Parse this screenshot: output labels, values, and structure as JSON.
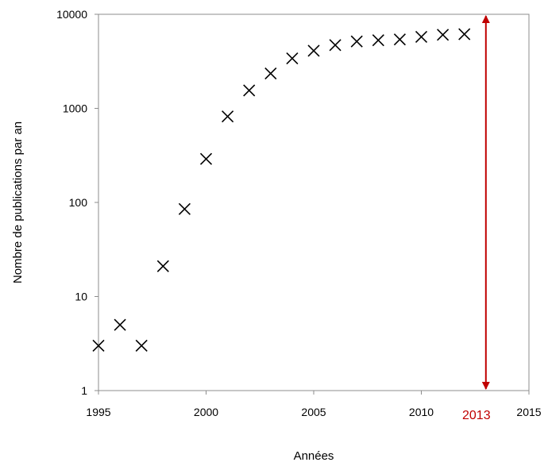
{
  "chart_data": {
    "type": "scatter",
    "title": "",
    "xlabel": "Années",
    "ylabel": "Nombre de publications par an",
    "xlim": [
      1995,
      2015
    ],
    "ylim": [
      1,
      10000
    ],
    "y_scale": "log",
    "grid": false,
    "legend": "none",
    "x_ticks": [
      1995,
      2000,
      2005,
      2010,
      2015
    ],
    "y_ticks": [
      1,
      10,
      100,
      1000,
      10000
    ],
    "x_tick_labels": [
      "1995",
      "2000",
      "2005",
      "2010",
      "2015"
    ],
    "y_tick_labels": [
      "1",
      "10",
      "100",
      "1000",
      "10000"
    ],
    "series": [
      {
        "marker": "x",
        "color": "#000000",
        "points": [
          {
            "x": 1995,
            "y": 3
          },
          {
            "x": 1996,
            "y": 5
          },
          {
            "x": 1997,
            "y": 3
          },
          {
            "x": 1998,
            "y": 21
          },
          {
            "x": 1999,
            "y": 85
          },
          {
            "x": 2000,
            "y": 290
          },
          {
            "x": 2001,
            "y": 820
          },
          {
            "x": 2002,
            "y": 1550
          },
          {
            "x": 2003,
            "y": 2350
          },
          {
            "x": 2004,
            "y": 3400
          },
          {
            "x": 2005,
            "y": 4100
          },
          {
            "x": 2006,
            "y": 4700
          },
          {
            "x": 2007,
            "y": 5150
          },
          {
            "x": 2008,
            "y": 5300
          },
          {
            "x": 2009,
            "y": 5400
          },
          {
            "x": 2010,
            "y": 5750
          },
          {
            "x": 2011,
            "y": 6050
          },
          {
            "x": 2012,
            "y": 6150
          }
        ]
      }
    ],
    "annotation": {
      "x": 2013,
      "label": "2013",
      "y_from": 1,
      "y_to": 10000,
      "color": "#c00000",
      "style": "double-arrow"
    },
    "frame_color": "#8c8c8c"
  }
}
